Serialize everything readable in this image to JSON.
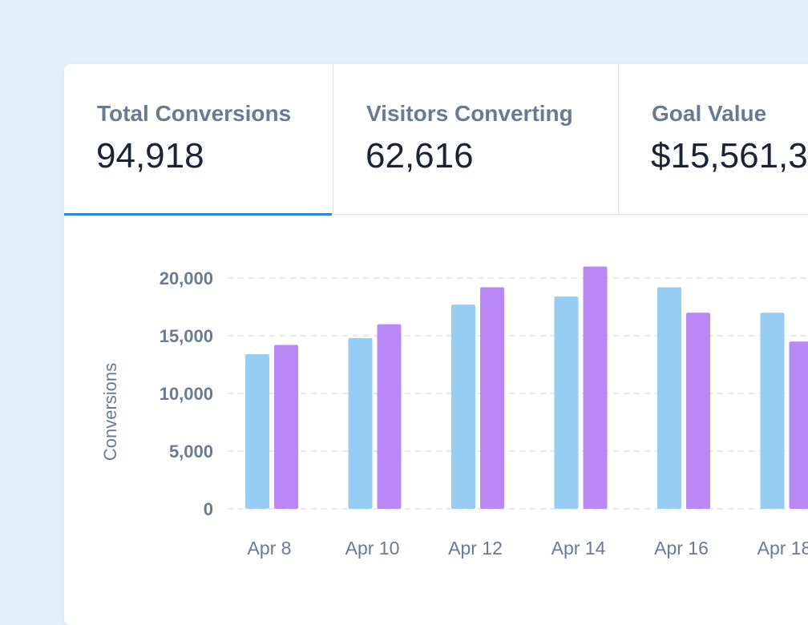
{
  "metrics": [
    {
      "label": "Total Conversions",
      "value": "94,918"
    },
    {
      "label": "Visitors Converting",
      "value": "62,616"
    },
    {
      "label": "Goal Value",
      "value": "$15,561,3"
    }
  ],
  "colors": {
    "accent": "#2c86d4",
    "series_a": "#97cdf3",
    "series_b": "#b988f4"
  },
  "chart_data": {
    "type": "bar",
    "ylabel": "Conversions",
    "ylim": [
      0,
      20000
    ],
    "yticks": [
      "0",
      "5,000",
      "10,000",
      "15,000",
      "20,000"
    ],
    "grid": true,
    "categories": [
      "Apr 8",
      "Apr 10",
      "Apr 12",
      "Apr 14",
      "Apr 16",
      "Apr 18"
    ],
    "series": [
      {
        "values": [
          13400,
          14800,
          17700,
          18400,
          19200,
          17000
        ]
      },
      {
        "values": [
          14200,
          16000,
          19200,
          21000,
          17000,
          14500
        ]
      }
    ]
  }
}
